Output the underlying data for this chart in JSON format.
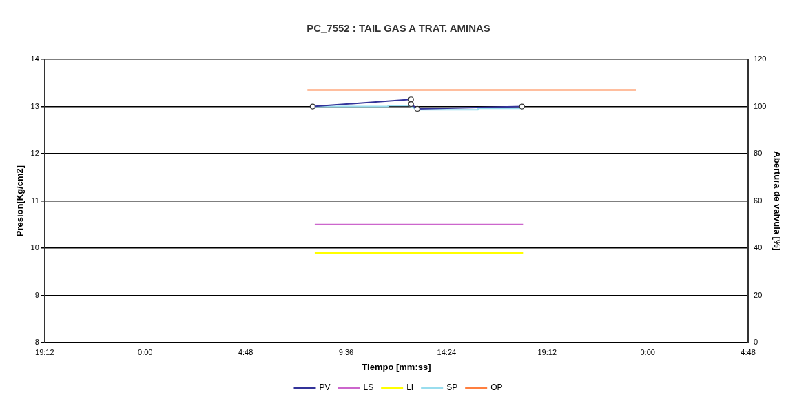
{
  "chart_data": {
    "type": "line",
    "title": "PC_7552 : TAIL GAS A TRAT. AMINAS",
    "xlabel": "Tiempo [mm:ss]",
    "ylabel": "Presion[Kg/cm2]",
    "y2label": "Abertura de valvula [%]",
    "xlim": [
      "2000-01-01T19:12",
      "2000-01-03T04:48"
    ],
    "xticks": [
      {
        "value": "2000-01-01T19:12",
        "label": "19:12"
      },
      {
        "value": "2000-01-02T00:00",
        "label": "0:00"
      },
      {
        "value": "2000-01-02T04:48",
        "label": "4:48"
      },
      {
        "value": "2000-01-02T09:36",
        "label": "9:36"
      },
      {
        "value": "2000-01-02T14:24",
        "label": "14:24"
      },
      {
        "value": "2000-01-02T19:12",
        "label": "19:12"
      },
      {
        "value": "2000-01-03T00:00",
        "label": "0:00"
      },
      {
        "value": "2000-01-03T04:48",
        "label": "4:48"
      }
    ],
    "ylim": [
      8,
      14
    ],
    "yticks": [
      8,
      9,
      10,
      11,
      12,
      13,
      14
    ],
    "y2lim": [
      0,
      120
    ],
    "y2ticks": [
      0,
      20,
      40,
      60,
      80,
      100,
      120
    ],
    "grid": "y",
    "legend": "bottom",
    "series": [
      {
        "name": "PV",
        "color": "#333399",
        "marker": "circle",
        "x": [
          "2000-01-02T08:00",
          "2000-01-02T12:42",
          "2000-01-02T12:42",
          "2000-01-02T13:00",
          "2000-01-02T18:00"
        ],
        "values": [
          13.0,
          13.15,
          13.05,
          12.95,
          13.0
        ]
      },
      {
        "name": "LS",
        "color": "#cc66cc",
        "marker": "none",
        "x": [
          "2000-01-02T08:06",
          "2000-01-02T18:03"
        ],
        "values": [
          10.5,
          10.5
        ]
      },
      {
        "name": "LI",
        "color": "#ffff00",
        "marker": "none",
        "x": [
          "2000-01-02T08:06",
          "2000-01-02T18:03"
        ],
        "values": [
          9.9,
          9.9
        ]
      },
      {
        "name": "SP",
        "color": "#99ddee",
        "marker": "none",
        "x": [
          "2000-01-02T08:00",
          "2000-01-02T11:36",
          "2000-01-02T11:36",
          "2000-01-02T12:36",
          "2000-01-02T13:00",
          "2000-01-02T15:54",
          "2000-01-02T15:54",
          "2000-01-02T18:00"
        ],
        "values": [
          13.0,
          13.0,
          13.02,
          13.02,
          12.93,
          12.93,
          12.96,
          12.96
        ]
      },
      {
        "name": "OP",
        "color": "#ff7f3f",
        "marker": "none",
        "axis": "y2",
        "x": [
          "2000-01-02T07:45",
          "2000-01-02T23:27"
        ],
        "values": [
          107,
          107
        ]
      }
    ]
  }
}
